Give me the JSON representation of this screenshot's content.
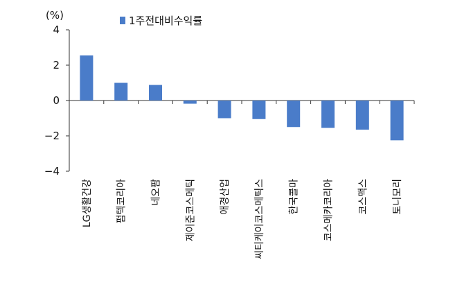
{
  "chart_data": {
    "type": "bar",
    "unit_label": "(%)",
    "categories": [
      "LG생활건강",
      "펌텍코리아",
      "네오팜",
      "제이준코스메틱",
      "애경산업",
      "씨티케이코스메틱스",
      "한국콜마",
      "코스메카코리아",
      "코스맥스",
      "토니모리"
    ],
    "series": [
      {
        "name": "1주전대비수익률",
        "values": [
          2.55,
          1.0,
          0.88,
          -0.18,
          -1.0,
          -1.05,
          -1.5,
          -1.55,
          -1.65,
          -2.25
        ]
      }
    ],
    "ylim": [
      -4,
      4
    ],
    "yticks": [
      4,
      2,
      0,
      -2,
      -4
    ],
    "ytick_labels": [
      "4",
      "2",
      "0",
      "−2",
      "−4"
    ],
    "grid": false,
    "legend_position": "top",
    "colors": {
      "bar": "#4a7cc9",
      "axis": "#333333"
    }
  }
}
